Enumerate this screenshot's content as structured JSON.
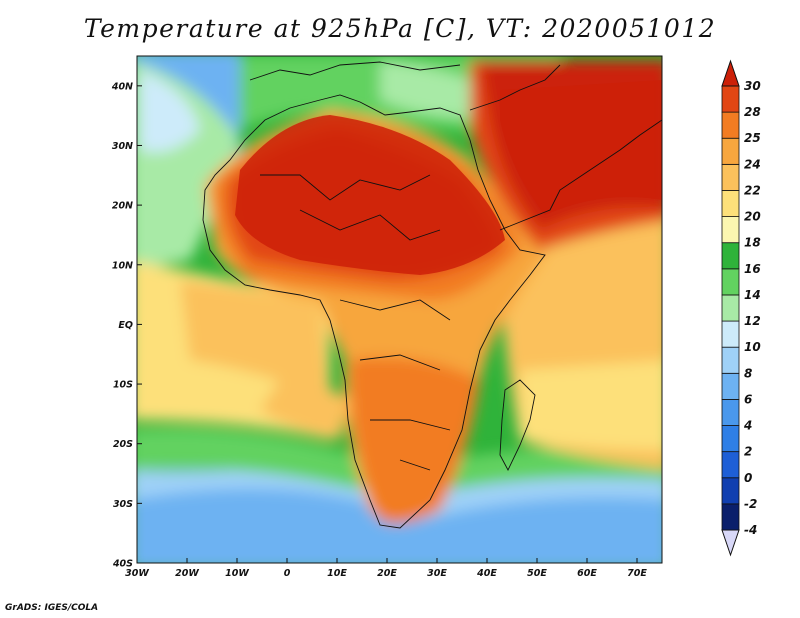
{
  "title": "Temperature at 925hPa [C], VT: 2020051012",
  "credit": "GrADS: IGES/COLA",
  "chart_data": {
    "type": "heatmap",
    "variable": "Temperature at 925hPa",
    "units": "C",
    "valid_time": "2020051012",
    "x_axis": {
      "min": -30,
      "max": 75,
      "ticks": [
        -30,
        -20,
        -10,
        0,
        10,
        20,
        30,
        40,
        50,
        60,
        70
      ],
      "tick_labels": [
        "30W",
        "20W",
        "10W",
        "0",
        "10E",
        "20E",
        "30E",
        "40E",
        "50E",
        "60E",
        "70E"
      ]
    },
    "y_axis": {
      "min": -40,
      "max": 45,
      "ticks": [
        -40,
        -30,
        -20,
        -10,
        0,
        10,
        20,
        30,
        40
      ],
      "tick_labels": [
        "40S",
        "30S",
        "20S",
        "10S",
        "EQ",
        "10N",
        "20N",
        "30N",
        "40N"
      ]
    },
    "colorbar": {
      "levels": [
        -4,
        -2,
        0,
        2,
        4,
        6,
        8,
        10,
        12,
        14,
        16,
        18,
        20,
        22,
        24,
        25,
        28,
        30
      ],
      "labels": [
        "-4",
        "-2",
        "0",
        "2",
        "4",
        "6",
        "8",
        "10",
        "12",
        "14",
        "16",
        "18",
        "20",
        "22",
        "24",
        "25",
        "28",
        "30"
      ],
      "colors": [
        "#0a1f6b",
        "#103fb0",
        "#1e5fd6",
        "#2f7fe6",
        "#4a98ec",
        "#6db2f2",
        "#9fd1f7",
        "#cdebfa",
        "#a8eaa6",
        "#62d260",
        "#2fb33a",
        "#fbf6b0",
        "#fde07a",
        "#fbc15c",
        "#f7a63e",
        "#f27c22",
        "#e24614",
        "#cc2008"
      ],
      "under_color": "#d8d8f8"
    }
  }
}
